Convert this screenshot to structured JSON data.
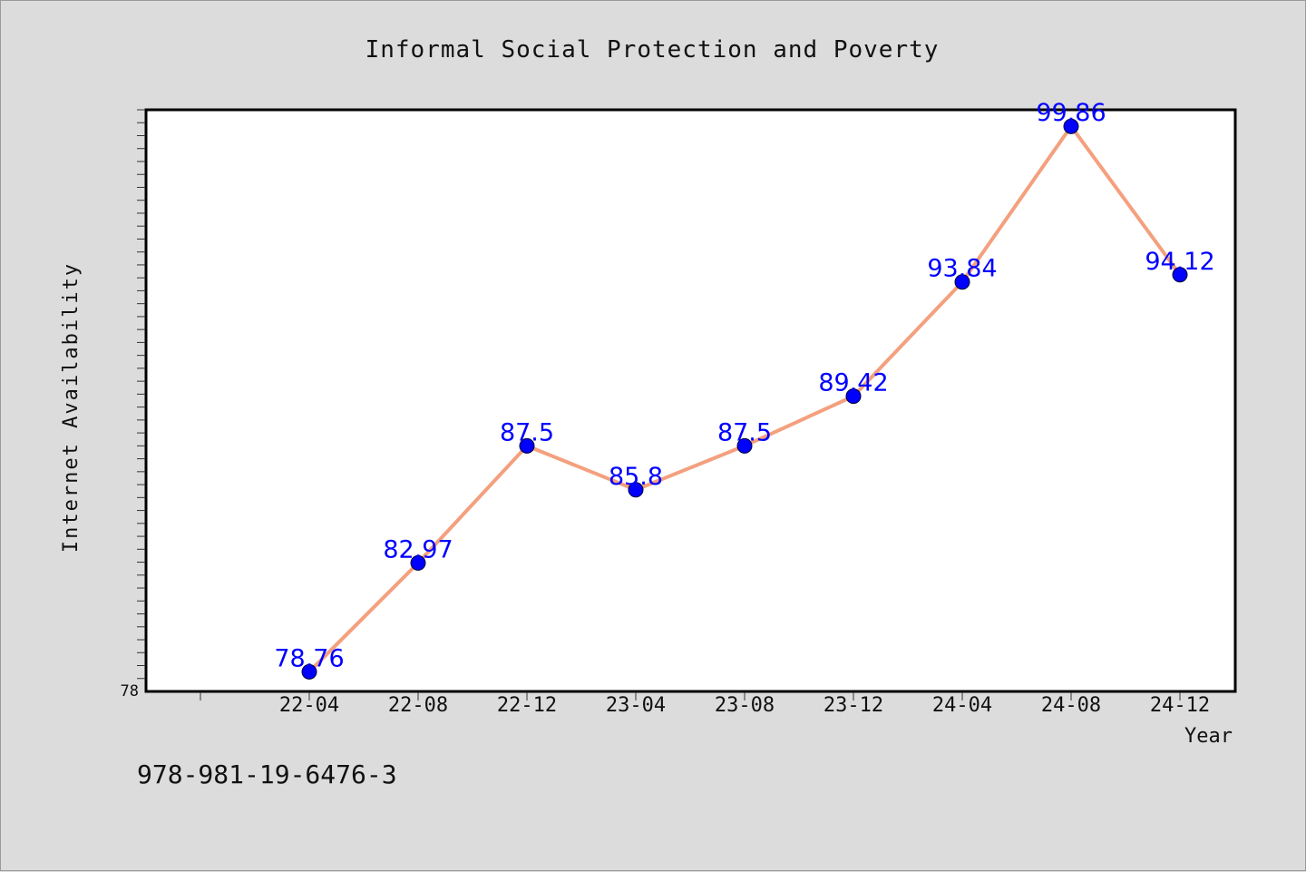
{
  "chart_data": {
    "type": "line",
    "title": "Informal Social Protection and Poverty",
    "xlabel": "Year",
    "ylabel": "Internet Availability",
    "categories": [
      "22-04",
      "22-08",
      "22-12",
      "23-04",
      "23-08",
      "23-12",
      "24-04",
      "24-08",
      "24-12"
    ],
    "series": [
      {
        "values": [
          78.76,
          82.97,
          87.5,
          85.8,
          87.5,
          89.42,
          93.84,
          99.86,
          94.12
        ],
        "labels": [
          "78.76",
          "82.97",
          "87.5",
          "85.8",
          "87.5",
          "89.42",
          "93.84",
          "99.86",
          "94.12"
        ],
        "line_color": "#f4a07e",
        "marker_color": "#0000ff",
        "label_color": "#0000ff"
      }
    ],
    "y_tick_labels": [
      "78"
    ],
    "ylim": [
      78,
      100.5
    ],
    "grid": false,
    "legend": "none"
  },
  "footer": {
    "isbn": "978-981-19-6476-3"
  }
}
